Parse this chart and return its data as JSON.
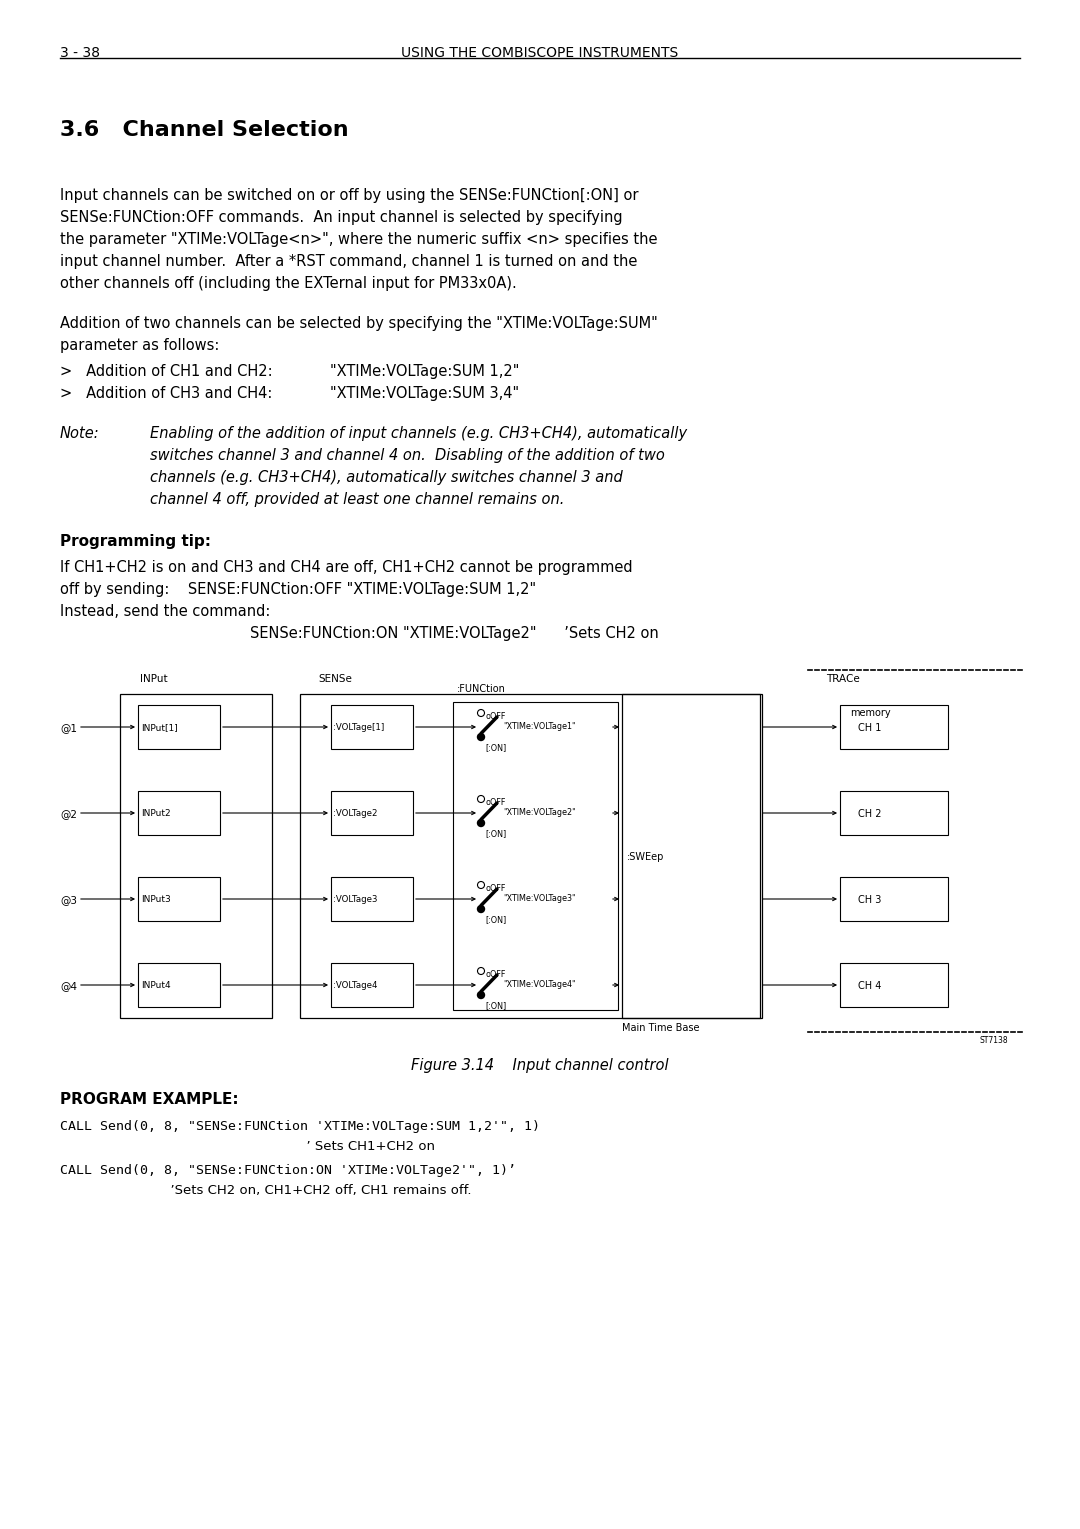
{
  "page_number": "3 - 38",
  "header": "USING THE COMBISCOPE INSTRUMENTS",
  "section_title": "3.6   Channel Selection",
  "body_para1": [
    "Input channels can be switched on or off by using the SENSe:FUNCtion[:ON] or",
    "SENSe:FUNCtion:OFF commands.  An input channel is selected by specifying",
    "the parameter \"XTIMe:VOLTage<n>\", where the numeric suffix <n> specifies the",
    "input channel number.  After a *RST command, channel 1 is turned on and the",
    "other channels off (including the EXTernal input for PM33x0A)."
  ],
  "body_para2": [
    "Addition of two channels can be selected by specifying the \"XTIMe:VOLTage:SUM\"",
    "parameter as follows:"
  ],
  "bullet1_label": ">   Addition of CH1 and CH2:",
  "bullet1_value": "\"XTIMe:VOLTage:SUM 1,2\"",
  "bullet2_label": ">   Addition of CH3 and CH4:",
  "bullet2_value": "\"XTIMe:VOLTage:SUM 3,4\"",
  "note_label": "Note:",
  "note_lines": [
    "Enabling of the addition of input channels (e.g. CH3+CH4), automatically",
    "switches channel 3 and channel 4 on.  Disabling of the addition of two",
    "channels (e.g. CH3+CH4), automatically switches channel 3 and",
    "channel 4 off, provided at least one channel remains on."
  ],
  "prog_tip_label": "Programming tip:",
  "prog_tip_lines": [
    "If CH1+CH2 is on and CH3 and CH4 are off, CH1+CH2 cannot be programmed",
    "off by sending:    SENSE:FUNCtion:OFF \"XTIME:VOLTage:SUM 1,2\"",
    "Instead, send the command:"
  ],
  "command_indent": "SENSe:FUNCtion:ON \"XTIME:VOLTage2\"      ’Sets CH2 on",
  "figure_caption": "Figure 3.14    Input channel control",
  "prog_example_label": "PROGRAM EXAMPLE:",
  "prog_line1": "CALL Send(0, 8, \"SENSe:FUNCtion 'XTIMe:VOLTage:SUM 1,2'\", 1)",
  "prog_line1b": "                                                          ’ Sets CH1+CH2 on",
  "prog_line2": "CALL Send(0, 8, \"SENSe:FUNCtion:ON 'XTIMe:VOLTage2'\", 1)’",
  "prog_line2b": "                          ’Sets CH2 on, CH1+CH2 off, CH1 remains off.",
  "bg_color": "#ffffff"
}
